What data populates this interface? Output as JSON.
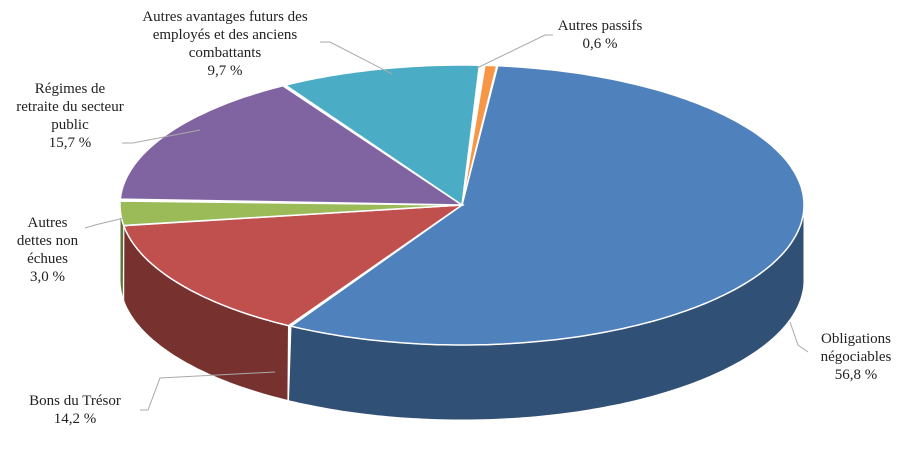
{
  "chart_data": {
    "type": "pie3d",
    "categories": [
      "Obligations négociables",
      "Bons du Trésor",
      "Autres dettes non échues",
      "Régimes de retraite du secteur public",
      "Autres avantages futurs des employés et des anciens combattants",
      "Autres passifs"
    ],
    "values": [
      56.8,
      14.2,
      3.0,
      15.7,
      9.7,
      0.6
    ],
    "value_labels": [
      "56,8 %",
      "14,2 %",
      "3,0 %",
      "15,7 %",
      "9,7 %",
      "0,6 %"
    ],
    "colors": [
      "#4f81bd",
      "#c0504d",
      "#9bbb59",
      "#8064a2",
      "#4bacc6",
      "#f79646"
    ]
  }
}
